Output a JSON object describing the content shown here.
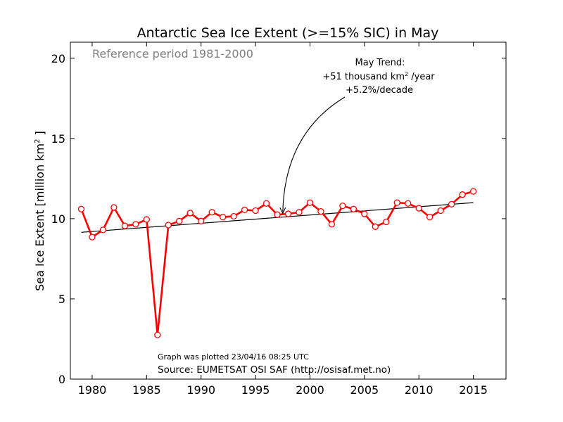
{
  "chart_data": {
    "type": "line",
    "title": "Antarctic Sea Ice Extent (>=15% SIC) in May",
    "ylabel": "Sea Ice Extent [million km² ]",
    "xlabel": "",
    "xlim": [
      1978,
      2018
    ],
    "ylim": [
      0,
      21
    ],
    "xticks": [
      1980,
      1985,
      1990,
      1995,
      2000,
      2005,
      2010,
      2015
    ],
    "yticks": [
      0,
      5,
      10,
      15,
      20
    ],
    "reference_note": "Reference period 1981-2000",
    "annotation": {
      "line1": "May Trend:",
      "line2_prefix": "+51 thousand km",
      "line2_sup": "2",
      "line2_suffix": " /year",
      "line3": "+5.2%/decade",
      "arrow_target": {
        "x": 1997.5,
        "y": 10.25
      }
    },
    "plotted_note": "Graph was plotted 23/04/16 08:25 UTC",
    "source": "Source: EUMETSAT OSI SAF (http://osisaf.met.no)",
    "series": [
      {
        "color": "#ff0000",
        "x": [
          1979,
          1980,
          1981,
          1982,
          1983,
          1984,
          1985,
          1986,
          1987,
          1988,
          1989,
          1990,
          1991,
          1992,
          1993,
          1994,
          1995,
          1996,
          1997,
          1998,
          1999,
          2000,
          2001,
          2002,
          2003,
          2004,
          2005,
          2006,
          2007,
          2008,
          2009,
          2010,
          2011,
          2012,
          2013,
          2014,
          2015
        ],
        "y": [
          10.6,
          8.85,
          9.3,
          10.7,
          9.55,
          9.65,
          9.95,
          2.75,
          9.6,
          9.85,
          10.35,
          9.85,
          10.4,
          10.1,
          10.15,
          10.55,
          10.5,
          10.95,
          10.25,
          10.3,
          10.4,
          11.0,
          10.45,
          9.65,
          10.8,
          10.6,
          10.3,
          9.5,
          9.8,
          11.0,
          10.95,
          10.65,
          10.1,
          10.5,
          10.9,
          11.5,
          11.7
        ]
      }
    ],
    "trend": {
      "x": [
        1979,
        2015
      ],
      "y": [
        9.15,
        11.0
      ],
      "color": "#000000"
    }
  }
}
